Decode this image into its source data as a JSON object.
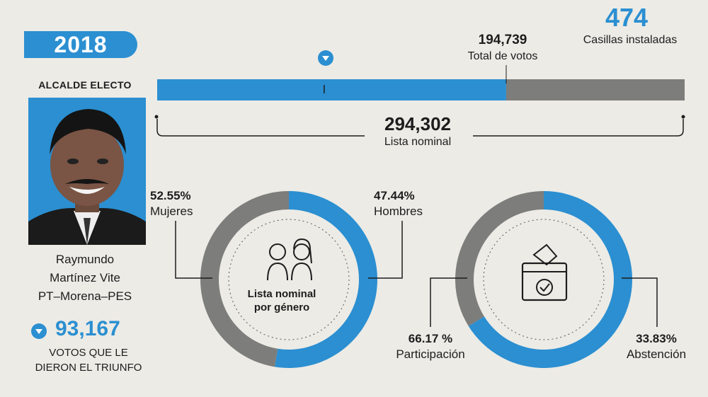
{
  "header": {
    "year": "2018",
    "casillas_value": "474",
    "casillas_label": "Casillas instaladas",
    "total_votos_value": "194,739",
    "total_votos_label": "Total de votos",
    "lista_nominal_value": "294,302",
    "lista_nominal_label": "Lista nominal"
  },
  "candidate": {
    "role": "ALCALDE ELECTO",
    "name_line1": "Raymundo",
    "name_line2": "Martínez Vite",
    "party": "PT–Morena–PES",
    "winning_votes": "93,167",
    "winning_caption_line1": "VOTOS QUE LE",
    "winning_caption_line2": "DIERON EL TRIUNFO"
  },
  "colors": {
    "blue": "#2b8fd1",
    "gray": "#7d7d7b",
    "paper": "#ecebe6"
  },
  "icons": [
    "down-triangle-icon",
    "people-icon",
    "ballot-box-icon"
  ],
  "chart_data": [
    {
      "type": "bar",
      "orientation": "horizontal-stacked",
      "categories": [
        "Lista nominal"
      ],
      "series": [
        {
          "name": "Total de votos",
          "values": [
            194739
          ]
        },
        {
          "name": "",
          "values": [
            99563
          ]
        }
      ],
      "total": 294302,
      "marker_value": 93167
    },
    {
      "type": "pie",
      "style": "donut",
      "center_label": "Lista nominal por género",
      "slices": [
        {
          "label": "Mujeres",
          "display": "52.55%",
          "value": 52.55,
          "color": "#2b8fd1"
        },
        {
          "label": "Hombres",
          "display": "47.44%",
          "value": 47.44,
          "color": "#7d7d7b"
        }
      ]
    },
    {
      "type": "pie",
      "style": "donut",
      "center_label": "",
      "slices": [
        {
          "label": "Participación",
          "display": "66.17 %",
          "value": 66.17,
          "color": "#2b8fd1"
        },
        {
          "label": "Abstención",
          "display": "33.83%",
          "value": 33.83,
          "color": "#7d7d7b"
        }
      ]
    }
  ]
}
